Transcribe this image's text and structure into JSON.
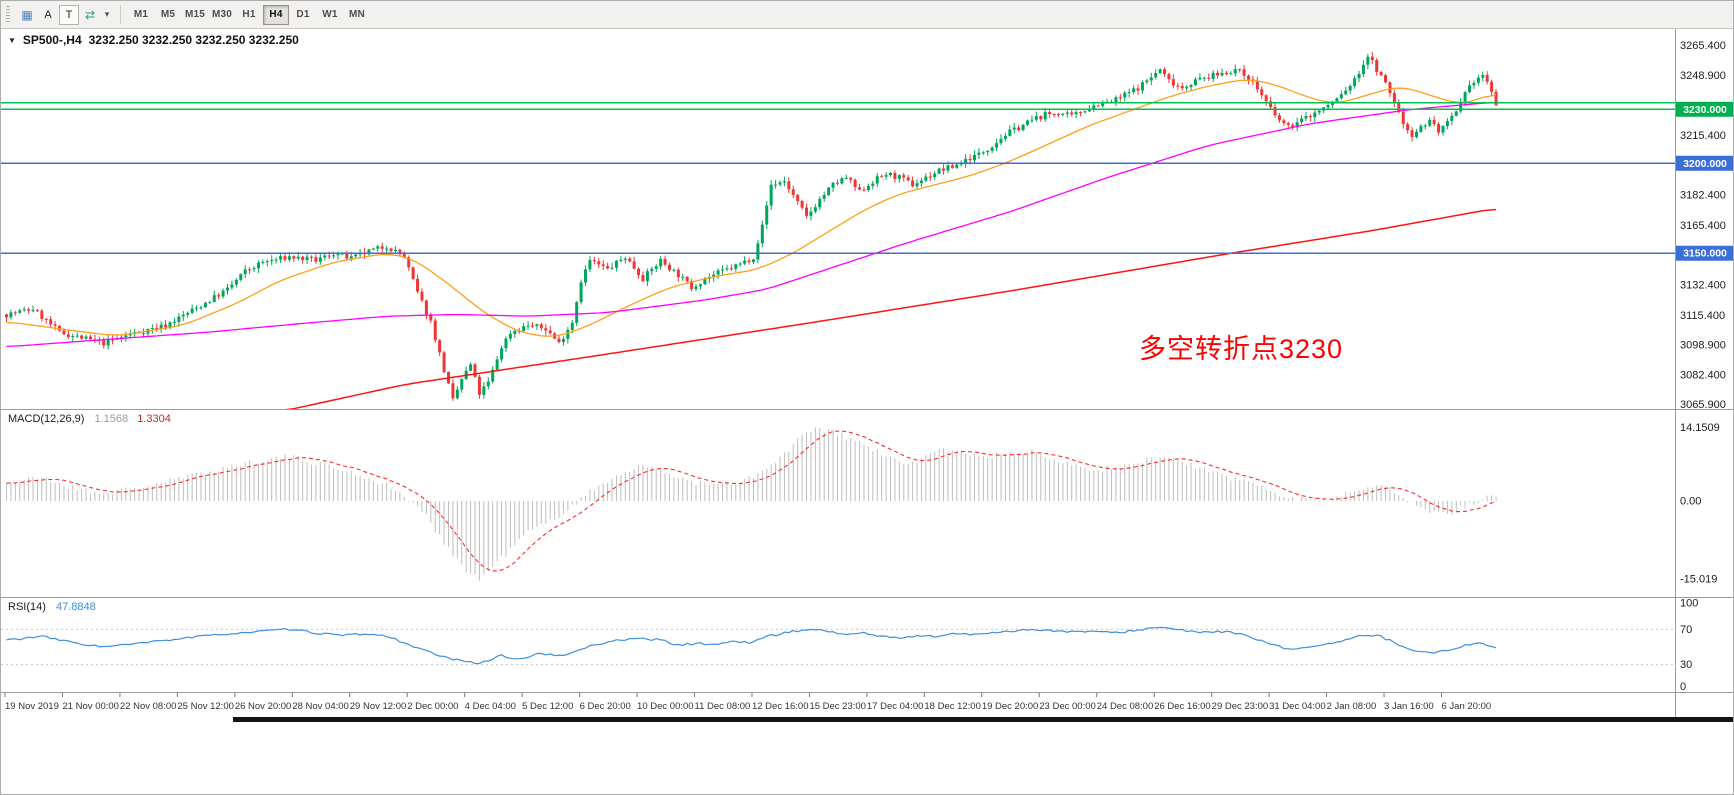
{
  "toolbar": {
    "icons": [
      {
        "name": "chart-type",
        "glyph": "▦"
      },
      {
        "name": "arrow-tool",
        "glyph": "A"
      },
      {
        "name": "text-tool",
        "glyph": "T"
      },
      {
        "name": "cycle-arrows",
        "glyph": "⇄"
      },
      {
        "name": "dropdown-caret",
        "glyph": "▾"
      }
    ],
    "timeframes": [
      "M1",
      "M5",
      "M15",
      "M30",
      "H1",
      "H4",
      "D1",
      "W1",
      "MN"
    ],
    "active_timeframe": "H4"
  },
  "main_chart": {
    "collapse_glyph": "▼",
    "title": "SP500-,H4",
    "ohlc": "3232.250 3232.250 3232.250 3232.250",
    "annotation": {
      "text": "多空转折点3230"
    }
  },
  "macd": {
    "label": "MACD(12,26,9)",
    "value_main": "1.1568",
    "value_signal": "1.3304"
  },
  "rsi": {
    "label": "RSI(14)",
    "value": "47.8848"
  },
  "colors": {
    "up": "#00a65a",
    "down": "#f03535",
    "ma_fast": "#ff9f1a",
    "ma_mid": "#ff00ff",
    "ma_slow": "#ff1414",
    "hline_green": "#00c24e",
    "hline_blue": "#3a6fd8",
    "badge_green": "#00b050",
    "badge_blue": "#3a6fd8",
    "macd_hist": "#bdbdbd",
    "macd_signal": "#ff2a2a",
    "rsi_line": "#3e8ede",
    "annotation": "#ff0000",
    "axis_text": "#1c1c1c",
    "time_text": "#333333"
  },
  "chart_data": {
    "type": "candlestick",
    "symbol": "SP500-",
    "timeframe": "H4",
    "bars": 338,
    "bars_per_label": 13,
    "price_axis_ticks": [
      "3265.400",
      "3248.900",
      "3215.400",
      "3182.400",
      "3165.400",
      "3132.400",
      "3115.400",
      "3098.900",
      "3082.400",
      "3065.900"
    ],
    "price_range": {
      "top": 3273.5,
      "bottom": 3064.0
    },
    "hlines": [
      {
        "price": 3233.6,
        "color_key": "hline_green"
      },
      {
        "price": 3230.0,
        "color_key": "hline_green",
        "badge": "3230.000",
        "badge_key": "badge_green"
      },
      {
        "price": 3200.0,
        "color_key": "hline_blue",
        "badge": "3200.000",
        "badge_key": "badge_blue"
      },
      {
        "price": 3150.0,
        "color_key": "hline_blue",
        "badge": "3150.000",
        "badge_key": "badge_blue"
      }
    ],
    "time_labels": [
      "19 Nov 2019",
      "21 Nov 00:00",
      "22 Nov 08:00",
      "25 Nov 12:00",
      "26 Nov 20:00",
      "28 Nov 04:00",
      "29 Nov 12:00",
      "2 Dec 00:00",
      "4 Dec 04:00",
      "5 Dec 12:00",
      "6 Dec 20:00",
      "10 Dec 00:00",
      "11 Dec 08:00",
      "12 Dec 16:00",
      "15 Dec 23:00",
      "17 Dec 04:00",
      "18 Dec 12:00",
      "19 Dec 20:00",
      "23 Dec 00:00",
      "24 Dec 08:00",
      "26 Dec 16:00",
      "29 Dec 23:00",
      "31 Dec 04:00",
      "2 Jan 08:00",
      "3 Jan 16:00",
      "6 Jan 20:00"
    ],
    "close_anchors": [
      [
        0,
        3116
      ],
      [
        6,
        3119
      ],
      [
        12,
        3106
      ],
      [
        22,
        3100
      ],
      [
        28,
        3105
      ],
      [
        36,
        3110
      ],
      [
        44,
        3121
      ],
      [
        50,
        3130
      ],
      [
        54,
        3140
      ],
      [
        58,
        3145
      ],
      [
        64,
        3148
      ],
      [
        70,
        3146
      ],
      [
        74,
        3150
      ],
      [
        78,
        3147
      ],
      [
        82,
        3151
      ],
      [
        86,
        3154
      ],
      [
        90,
        3148
      ],
      [
        93,
        3128
      ],
      [
        96,
        3112
      ],
      [
        99,
        3085
      ],
      [
        101,
        3068
      ],
      [
        103,
        3080
      ],
      [
        105,
        3088
      ],
      [
        107,
        3072
      ],
      [
        109,
        3078
      ],
      [
        112,
        3098
      ],
      [
        114,
        3106
      ],
      [
        118,
        3110
      ],
      [
        122,
        3108
      ],
      [
        125,
        3100
      ],
      [
        128,
        3112
      ],
      [
        130,
        3135
      ],
      [
        132,
        3146
      ],
      [
        136,
        3141
      ],
      [
        140,
        3148
      ],
      [
        144,
        3136
      ],
      [
        148,
        3146
      ],
      [
        152,
        3138
      ],
      [
        155,
        3131
      ],
      [
        158,
        3136
      ],
      [
        162,
        3140
      ],
      [
        166,
        3144
      ],
      [
        169,
        3148
      ],
      [
        171,
        3165
      ],
      [
        173,
        3188
      ],
      [
        176,
        3190
      ],
      [
        179,
        3178
      ],
      [
        181,
        3170
      ],
      [
        184,
        3180
      ],
      [
        187,
        3188
      ],
      [
        190,
        3192
      ],
      [
        193,
        3184
      ],
      [
        196,
        3190
      ],
      [
        199,
        3194
      ],
      [
        202,
        3192
      ],
      [
        205,
        3188
      ],
      [
        208,
        3192
      ],
      [
        211,
        3196
      ],
      [
        214,
        3198
      ],
      [
        217,
        3202
      ],
      [
        220,
        3205
      ],
      [
        223,
        3210
      ],
      [
        226,
        3216
      ],
      [
        229,
        3220
      ],
      [
        232,
        3224
      ],
      [
        235,
        3227
      ],
      [
        238,
        3228
      ],
      [
        241,
        3226
      ],
      [
        244,
        3230
      ],
      [
        247,
        3233
      ],
      [
        250,
        3234
      ],
      [
        253,
        3238
      ],
      [
        256,
        3242
      ],
      [
        259,
        3248
      ],
      [
        261,
        3252
      ],
      [
        263,
        3246
      ],
      [
        266,
        3242
      ],
      [
        269,
        3246
      ],
      [
        272,
        3248
      ],
      [
        275,
        3250
      ],
      [
        278,
        3252
      ],
      [
        281,
        3248
      ],
      [
        284,
        3238
      ],
      [
        287,
        3226
      ],
      [
        290,
        3220
      ],
      [
        293,
        3224
      ],
      [
        296,
        3228
      ],
      [
        299,
        3232
      ],
      [
        302,
        3238
      ],
      [
        305,
        3246
      ],
      [
        308,
        3260
      ],
      [
        310,
        3252
      ],
      [
        312,
        3244
      ],
      [
        314,
        3234
      ],
      [
        316,
        3222
      ],
      [
        318,
        3216
      ],
      [
        320,
        3220
      ],
      [
        322,
        3224
      ],
      [
        324,
        3218
      ],
      [
        326,
        3222
      ],
      [
        328,
        3228
      ],
      [
        330,
        3238
      ],
      [
        332,
        3246
      ],
      [
        334,
        3249
      ],
      [
        336,
        3240
      ],
      [
        337,
        3232.3
      ]
    ],
    "ma_fast_anchors": [
      [
        0,
        3112
      ],
      [
        15,
        3107
      ],
      [
        25,
        3104
      ],
      [
        40,
        3110
      ],
      [
        52,
        3122
      ],
      [
        62,
        3135
      ],
      [
        74,
        3145
      ],
      [
        86,
        3150
      ],
      [
        92,
        3147
      ],
      [
        100,
        3133
      ],
      [
        108,
        3117
      ],
      [
        116,
        3106
      ],
      [
        124,
        3103
      ],
      [
        132,
        3110
      ],
      [
        140,
        3120
      ],
      [
        150,
        3131
      ],
      [
        160,
        3137
      ],
      [
        170,
        3141
      ],
      [
        178,
        3150
      ],
      [
        186,
        3162
      ],
      [
        194,
        3174
      ],
      [
        202,
        3183
      ],
      [
        210,
        3188
      ],
      [
        218,
        3193
      ],
      [
        227,
        3201
      ],
      [
        236,
        3211
      ],
      [
        245,
        3221
      ],
      [
        254,
        3229
      ],
      [
        263,
        3237
      ],
      [
        272,
        3243
      ],
      [
        281,
        3247
      ],
      [
        288,
        3243
      ],
      [
        295,
        3236
      ],
      [
        301,
        3233
      ],
      [
        308,
        3238
      ],
      [
        315,
        3243
      ],
      [
        322,
        3238
      ],
      [
        328,
        3233
      ],
      [
        333,
        3235
      ],
      [
        337,
        3240
      ]
    ],
    "ma_mid_anchors": [
      [
        0,
        3098
      ],
      [
        22,
        3102
      ],
      [
        45,
        3106
      ],
      [
        67,
        3111
      ],
      [
        86,
        3115
      ],
      [
        102,
        3116
      ],
      [
        118,
        3115
      ],
      [
        136,
        3117
      ],
      [
        158,
        3124
      ],
      [
        172,
        3130
      ],
      [
        188,
        3143
      ],
      [
        204,
        3156
      ],
      [
        227,
        3173
      ],
      [
        249,
        3192
      ],
      [
        272,
        3210
      ],
      [
        295,
        3222
      ],
      [
        318,
        3230
      ],
      [
        337,
        3234
      ]
    ],
    "ma_slow_anchors": [
      [
        62,
        3062
      ],
      [
        90,
        3077
      ],
      [
        136,
        3094
      ],
      [
        181,
        3111
      ],
      [
        227,
        3129
      ],
      [
        277,
        3150
      ],
      [
        310,
        3163
      ],
      [
        337,
        3175
      ]
    ],
    "macd": {
      "axis_ticks": [
        "14.1509",
        "0.00",
        "-15.019"
      ],
      "hist_anchors": [
        [
          0,
          3.5
        ],
        [
          8,
          4.5
        ],
        [
          15,
          2.5
        ],
        [
          22,
          1.5
        ],
        [
          30,
          2.5
        ],
        [
          40,
          4.5
        ],
        [
          50,
          6.5
        ],
        [
          58,
          8
        ],
        [
          64,
          8.5
        ],
        [
          72,
          7
        ],
        [
          80,
          5
        ],
        [
          86,
          3
        ],
        [
          90,
          1
        ],
        [
          95,
          -3
        ],
        [
          100,
          -9
        ],
        [
          104,
          -13.5
        ],
        [
          107,
          -15
        ],
        [
          112,
          -11
        ],
        [
          118,
          -6
        ],
        [
          124,
          -3.5
        ],
        [
          130,
          0.5
        ],
        [
          136,
          4
        ],
        [
          142,
          6.5
        ],
        [
          148,
          6
        ],
        [
          154,
          4
        ],
        [
          160,
          3
        ],
        [
          166,
          3.5
        ],
        [
          172,
          6
        ],
        [
          176,
          9
        ],
        [
          180,
          12.5
        ],
        [
          184,
          14
        ],
        [
          188,
          13
        ],
        [
          192,
          11.5
        ],
        [
          196,
          10
        ],
        [
          200,
          8
        ],
        [
          204,
          7
        ],
        [
          208,
          8.5
        ],
        [
          212,
          10
        ],
        [
          216,
          9.5
        ],
        [
          220,
          8.5
        ],
        [
          226,
          9
        ],
        [
          232,
          9.5
        ],
        [
          238,
          8
        ],
        [
          244,
          6.5
        ],
        [
          250,
          6
        ],
        [
          256,
          7.5
        ],
        [
          262,
          8.5
        ],
        [
          268,
          7
        ],
        [
          274,
          5
        ],
        [
          280,
          4
        ],
        [
          286,
          2
        ],
        [
          292,
          0.5
        ],
        [
          298,
          0.2
        ],
        [
          304,
          1.5
        ],
        [
          310,
          3.5
        ],
        [
          314,
          2
        ],
        [
          318,
          -0.5
        ],
        [
          322,
          -2
        ],
        [
          326,
          -2.5
        ],
        [
          330,
          -1
        ],
        [
          334,
          0.5
        ],
        [
          337,
          1.16
        ]
      ]
    },
    "rsi": {
      "axis_ticks": [
        "100",
        "70",
        "30",
        "0"
      ],
      "levels": [
        70,
        30
      ],
      "line_anchors": [
        [
          0,
          58
        ],
        [
          8,
          62
        ],
        [
          15,
          55
        ],
        [
          22,
          50
        ],
        [
          30,
          54
        ],
        [
          40,
          60
        ],
        [
          50,
          65
        ],
        [
          58,
          68
        ],
        [
          64,
          70
        ],
        [
          70,
          66
        ],
        [
          76,
          63
        ],
        [
          82,
          65
        ],
        [
          86,
          62
        ],
        [
          90,
          55
        ],
        [
          95,
          45
        ],
        [
          100,
          37
        ],
        [
          104,
          33
        ],
        [
          107,
          32
        ],
        [
          112,
          40
        ],
        [
          116,
          36
        ],
        [
          120,
          42
        ],
        [
          126,
          40
        ],
        [
          130,
          48
        ],
        [
          136,
          56
        ],
        [
          142,
          60
        ],
        [
          148,
          58
        ],
        [
          152,
          52
        ],
        [
          156,
          54
        ],
        [
          160,
          53
        ],
        [
          164,
          56
        ],
        [
          168,
          55
        ],
        [
          172,
          62
        ],
        [
          178,
          68
        ],
        [
          182,
          70
        ],
        [
          186,
          68
        ],
        [
          190,
          64
        ],
        [
          194,
          66
        ],
        [
          198,
          62
        ],
        [
          202,
          60
        ],
        [
          206,
          63
        ],
        [
          210,
          62
        ],
        [
          214,
          65
        ],
        [
          218,
          64
        ],
        [
          222,
          66
        ],
        [
          227,
          68
        ],
        [
          232,
          70
        ],
        [
          236,
          69
        ],
        [
          240,
          67
        ],
        [
          245,
          68
        ],
        [
          250,
          66
        ],
        [
          254,
          68
        ],
        [
          258,
          71
        ],
        [
          262,
          72
        ],
        [
          266,
          69
        ],
        [
          270,
          66
        ],
        [
          274,
          68
        ],
        [
          278,
          66
        ],
        [
          282,
          60
        ],
        [
          286,
          53
        ],
        [
          290,
          47
        ],
        [
          294,
          50
        ],
        [
          298,
          53
        ],
        [
          302,
          56
        ],
        [
          306,
          62
        ],
        [
          310,
          64
        ],
        [
          314,
          55
        ],
        [
          318,
          47
        ],
        [
          322,
          43
        ],
        [
          326,
          46
        ],
        [
          330,
          52
        ],
        [
          334,
          55
        ],
        [
          337,
          48
        ]
      ]
    }
  }
}
